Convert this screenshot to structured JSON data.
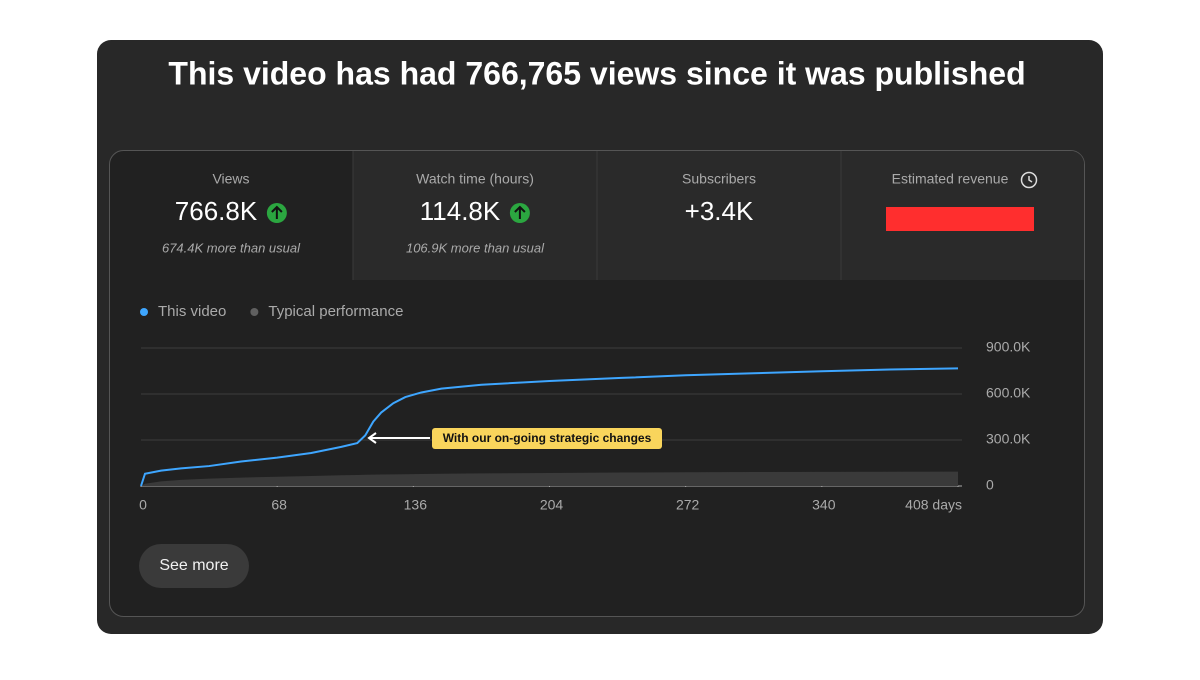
{
  "header": {
    "title": "This video has had 766,765 views since it was published"
  },
  "metrics": [
    {
      "label": "Views",
      "value": "766.8K",
      "note": "674.4K more than usual"
    },
    {
      "label": "Watch time (hours)",
      "value": "114.8K",
      "note": "106.9K more than usual"
    },
    {
      "label": "Subscribers",
      "value": "+3.4K"
    },
    {
      "label": "Estimated revenue"
    }
  ],
  "chart_data": {
    "type": "line",
    "x": [
      0,
      2,
      10,
      20,
      34,
      50,
      68,
      85,
      100,
      108,
      112,
      116,
      120,
      126,
      132,
      140,
      150,
      170,
      204,
      240,
      272,
      306,
      340,
      374,
      408
    ],
    "series": [
      {
        "name": "This video",
        "color": "#3ea6ff",
        "values": [
          0,
          80000,
          100000,
          115000,
          130000,
          160000,
          185000,
          215000,
          255000,
          280000,
          330000,
          420000,
          480000,
          540000,
          580000,
          610000,
          635000,
          660000,
          685000,
          705000,
          722000,
          735000,
          748000,
          760000,
          767000
        ]
      },
      {
        "name": "Typical performance",
        "color": "#606060",
        "fill": "#3a3a3a",
        "values": [
          0,
          15000,
          30000,
          40000,
          48000,
          55000,
          60000,
          65000,
          70000,
          72000,
          73000,
          74000,
          75000,
          76000,
          77000,
          78000,
          80000,
          82000,
          85000,
          88000,
          90000,
          91000,
          92000,
          93000,
          94000
        ]
      }
    ],
    "xlim": [
      0,
      408
    ],
    "xticks": [
      0,
      68,
      136,
      204,
      272,
      340,
      {
        "value": 408,
        "label": "408 days"
      }
    ],
    "ylim": [
      0,
      900000
    ],
    "yticks": [
      0,
      {
        "value": 300000,
        "label": "300.0K"
      },
      {
        "value": 600000,
        "label": "600.0K"
      },
      {
        "value": 900000,
        "label": "900.0K"
      }
    ],
    "grid": true,
    "annotation": "With our on-going strategic changes"
  },
  "button": "See more"
}
